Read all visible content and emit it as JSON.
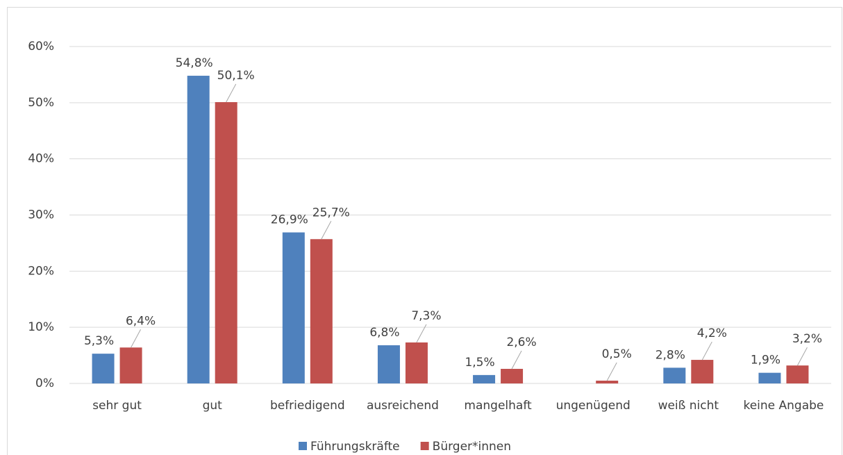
{
  "chart_data": {
    "type": "bar",
    "categories": [
      "sehr gut",
      "gut",
      "befriedigend",
      "ausreichend",
      "mangelhaft",
      "ungenügend",
      "weiß nicht",
      "keine Angabe"
    ],
    "series": [
      {
        "name": "Führungskräfte",
        "color": "#4f81bd",
        "values": [
          5.3,
          54.8,
          26.9,
          6.8,
          1.5,
          0,
          2.8,
          1.9
        ],
        "value_labels": [
          "5,3%",
          "54,8%",
          "26,9%",
          "6,8%",
          "1,5%",
          null,
          "2,8%",
          "1,9%"
        ]
      },
      {
        "name": "Bürger*innen",
        "color": "#c0504d",
        "values": [
          6.4,
          50.1,
          25.7,
          7.3,
          2.6,
          0.5,
          4.2,
          3.2
        ],
        "value_labels": [
          "6,4%",
          "50,1%",
          "25,7%",
          "7,3%",
          "2,6%",
          "0,5%",
          "4,2%",
          "3,2%"
        ]
      }
    ],
    "ylim": [
      0,
      60
    ],
    "yticks": [
      {
        "value": 0,
        "label": "0%"
      },
      {
        "value": 10,
        "label": "10%"
      },
      {
        "value": 20,
        "label": "20%"
      },
      {
        "value": 30,
        "label": "30%"
      },
      {
        "value": 40,
        "label": "40%"
      },
      {
        "value": 50,
        "label": "50%"
      },
      {
        "value": 60,
        "label": "60%"
      }
    ],
    "grid": true,
    "legend": "bottom"
  }
}
